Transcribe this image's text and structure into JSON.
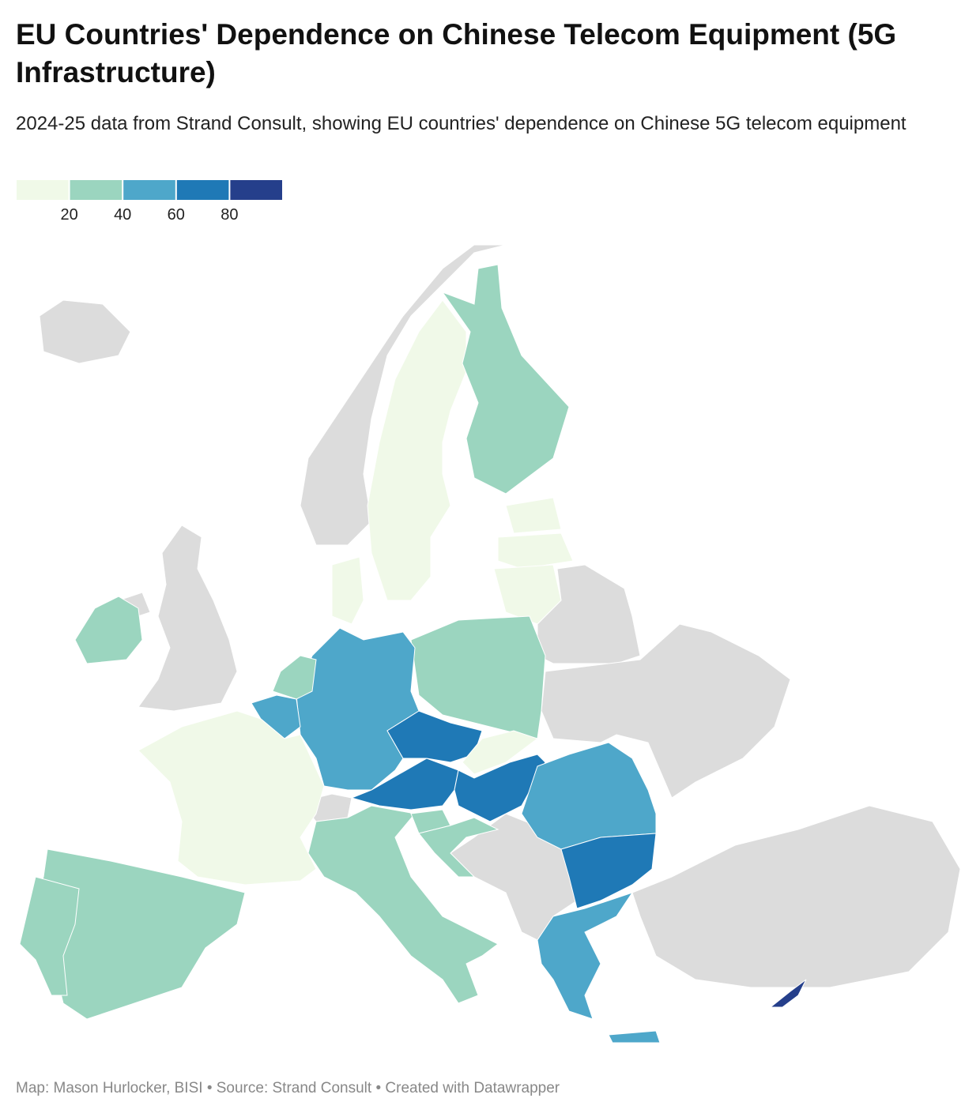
{
  "title": "EU Countries' Dependence on Chinese Telecom Equipment (5G Infrastructure)",
  "subtitle": "2024-25 data from Strand Consult, showing EU countries' dependence on Chinese 5G telecom equipment",
  "legend": {
    "range": [
      0,
      100
    ],
    "ticks": [
      20,
      40,
      60,
      80
    ],
    "colors": [
      "#f0f9e8",
      "#9bd5bf",
      "#4ea7ca",
      "#1f79b6",
      "#253f8b"
    ]
  },
  "map": {
    "values": [
      30,
      10,
      30,
      10,
      10,
      10,
      10,
      30,
      50,
      30,
      50,
      10,
      30,
      30,
      30,
      70,
      70,
      10,
      70,
      30,
      30,
      50,
      70,
      50,
      50,
      90
    ]
  },
  "footer": "Map: Mason Hurlocker, BISI • Source: Strand Consult • Created with Datawrapper"
}
